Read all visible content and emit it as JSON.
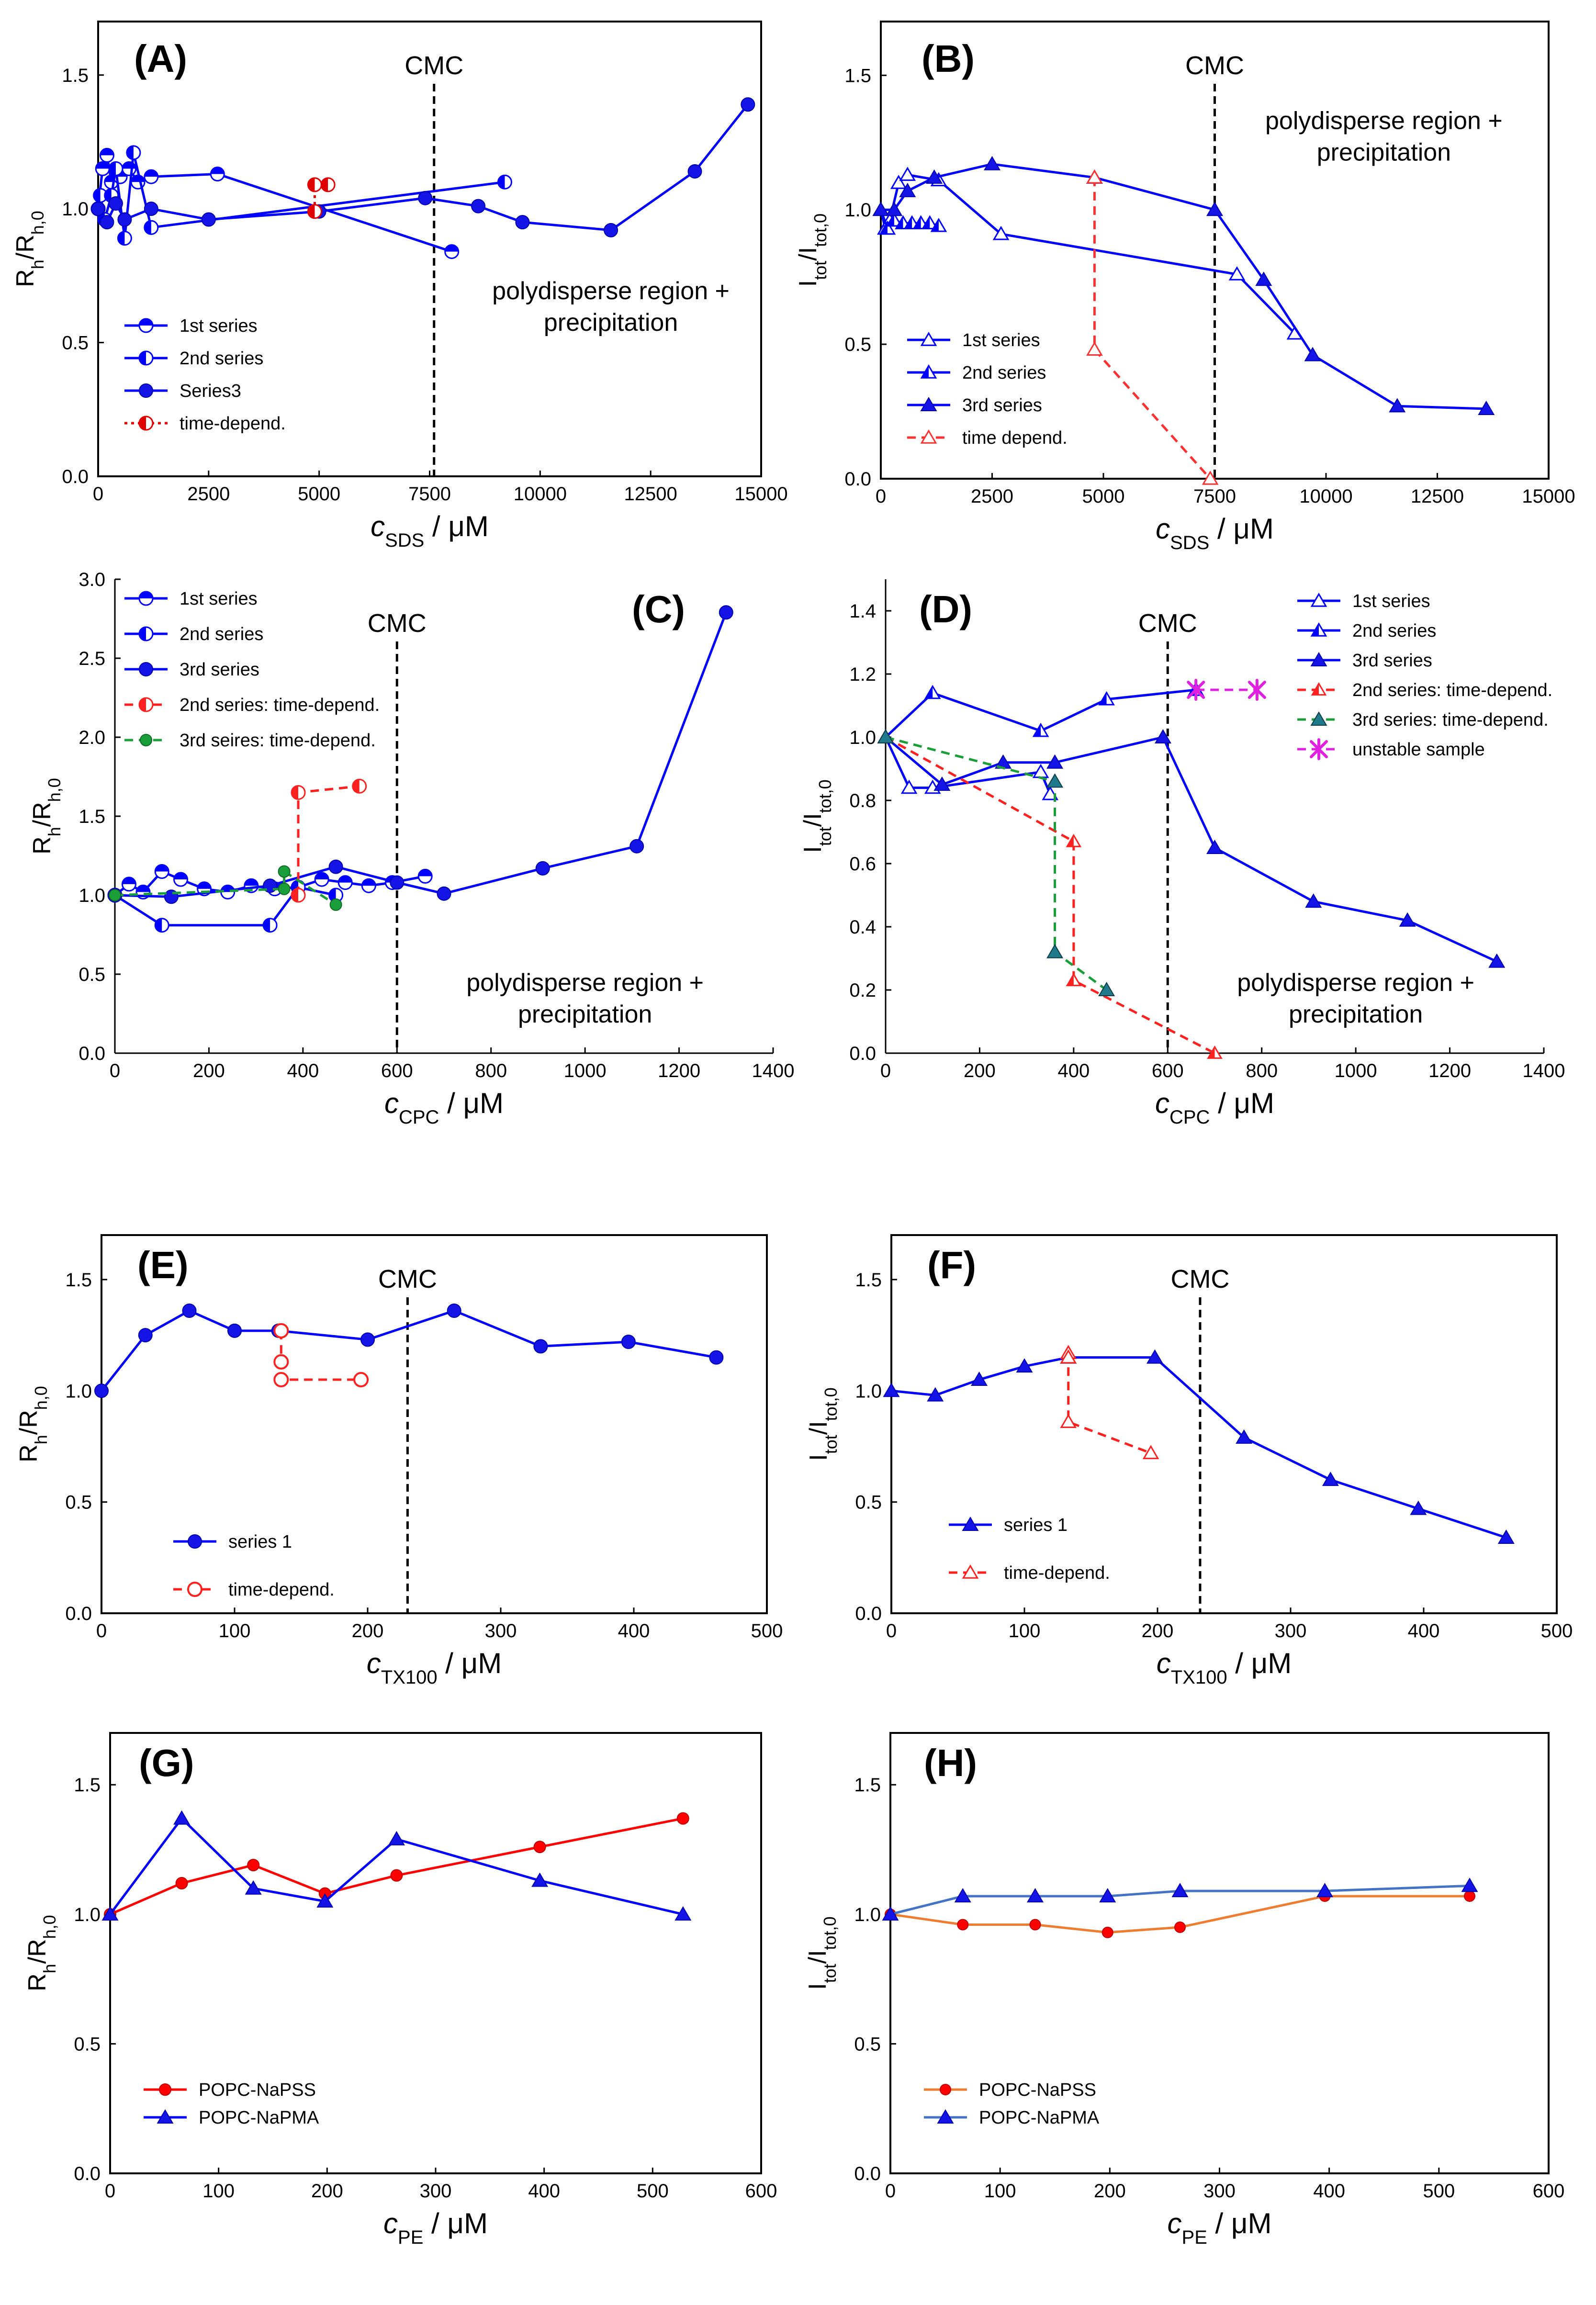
{
  "chart_data": [
    {
      "panel": "A",
      "type": "scatter",
      "xlabel_main": "c",
      "xlabel_sub": "SDS",
      "xlabel_unit": " / μM",
      "ylabel_main": "R",
      "ylabel_sub1": "h",
      "ylabel_mid": "/R",
      "ylabel_sub2": "h,0",
      "xlim": [
        0,
        15000
      ],
      "ylim": [
        0,
        1.7
      ],
      "xticks": [
        0,
        2500,
        5000,
        7500,
        10000,
        12500,
        15000
      ],
      "xtick_labels": [
        "0",
        "2500",
        "5000",
        "7500",
        "10000",
        "12500",
        "15000"
      ],
      "yticks": [
        0,
        0.5,
        1.0,
        1.5
      ],
      "ytick_labels": [
        "0.0",
        "0.5",
        "1.0",
        "1.5"
      ],
      "cmc_x": 7600,
      "cmc_label": "CMC",
      "annotation": [
        "polydisperse region +",
        "precipitation"
      ],
      "annotation_x": 11600,
      "legend_pos": "bottom-left",
      "series": [
        {
          "name": "1st series",
          "color": "#0000ff",
          "marker": "circle-half-top",
          "line": "solid",
          "x": [
            0,
            100,
            200,
            300,
            500,
            700,
            900,
            1200,
            2700,
            8000
          ],
          "y": [
            1.0,
            1.15,
            1.2,
            1.1,
            1.12,
            1.15,
            1.1,
            1.12,
            1.13,
            0.84
          ]
        },
        {
          "name": "2nd series",
          "color": "#0000ff",
          "marker": "circle-half-left",
          "line": "solid",
          "x": [
            0,
            50,
            150,
            300,
            400,
            600,
            800,
            1200,
            9200
          ],
          "y": [
            1.0,
            1.05,
            0.96,
            1.05,
            1.15,
            0.89,
            1.21,
            0.93,
            1.1
          ]
        },
        {
          "name": "Series3",
          "color": "#0000ff",
          "marker": "circle",
          "line": "solid",
          "x": [
            0,
            200,
            400,
            600,
            1200,
            2500,
            5000,
            7400,
            8600,
            9600,
            11600,
            13500,
            14700
          ],
          "y": [
            1.0,
            0.95,
            1.02,
            0.96,
            1.0,
            0.96,
            0.99,
            1.04,
            1.01,
            0.95,
            0.92,
            1.14,
            1.39
          ]
        },
        {
          "name": "time-depend.",
          "color": "#e00000",
          "marker": "circle-half-left",
          "line": "dotted",
          "x": [
            4900,
            4900,
            5200
          ],
          "y": [
            0.99,
            1.09,
            1.09
          ]
        }
      ]
    },
    {
      "panel": "B",
      "type": "scatter",
      "xlabel_main": "c",
      "xlabel_sub": "SDS",
      "xlabel_unit": " / μM",
      "ylabel_main": "I",
      "ylabel_sub1": "tot",
      "ylabel_mid": "/I",
      "ylabel_sub2": "tot,0",
      "xlim": [
        0,
        15000
      ],
      "ylim": [
        0,
        1.7
      ],
      "xticks": [
        0,
        2500,
        5000,
        7500,
        10000,
        12500,
        15000
      ],
      "xtick_labels": [
        "0",
        "2500",
        "5000",
        "7500",
        "10000",
        "12500",
        "15000"
      ],
      "yticks": [
        0,
        0.5,
        1.0,
        1.5
      ],
      "ytick_labels": [
        "0.0",
        "0.5",
        "1.0",
        "1.5"
      ],
      "cmc_x": 7500,
      "cmc_label": "CMC",
      "annotation": [
        "polydisperse region +",
        "precipitation"
      ],
      "annotation_x": 11300,
      "annotation_ytop": 1.3,
      "legend_pos": "bottom-left",
      "series": [
        {
          "name": "1st series",
          "color": "#0000ff",
          "marker": "triangle-open",
          "line": "solid",
          "x": [
            0,
            100,
            200,
            400,
            600,
            1300,
            2700,
            8000,
            9300
          ],
          "y": [
            1.0,
            0.93,
            0.96,
            1.1,
            1.13,
            1.11,
            0.91,
            0.76,
            0.54
          ]
        },
        {
          "name": "2nd series",
          "color": "#0000ff",
          "marker": "triangle-half",
          "line": "solid",
          "x": [
            0,
            150,
            300,
            500,
            700,
            900,
            1100,
            1300
          ],
          "y": [
            1.0,
            0.93,
            0.96,
            0.95,
            0.95,
            0.95,
            0.95,
            0.94
          ]
        },
        {
          "name": "3rd series",
          "color": "#0000ff",
          "marker": "triangle",
          "line": "solid",
          "x": [
            0,
            300,
            600,
            1200,
            2500,
            4800,
            7500,
            8600,
            9700,
            11600,
            13600
          ],
          "y": [
            1.0,
            1.0,
            1.07,
            1.12,
            1.17,
            1.12,
            1.0,
            0.74,
            0.46,
            0.27,
            0.26
          ]
        },
        {
          "name": "time depend.",
          "color": "#ff3030",
          "marker": "triangle-open",
          "line": "dashed",
          "x": [
            4800,
            4800,
            7400
          ],
          "y": [
            1.12,
            0.48,
            0.0
          ]
        }
      ]
    },
    {
      "panel": "C",
      "type": "scatter",
      "xlabel_main": "c",
      "xlabel_sub": "CPC",
      "xlabel_unit": " / μM",
      "ylabel_main": "R",
      "ylabel_sub1": "h",
      "ylabel_mid": "/R",
      "ylabel_sub2": "h,0",
      "xlim": [
        0,
        1400
      ],
      "ylim": [
        0,
        3.0
      ],
      "xticks": [
        0,
        200,
        400,
        600,
        800,
        1000,
        1200,
        1400
      ],
      "xtick_labels": [
        "0",
        "200",
        "400",
        "600",
        "800",
        "1000",
        "1200",
        "1400"
      ],
      "yticks": [
        0,
        0.5,
        1.0,
        1.5,
        2.0,
        2.5,
        3.0
      ],
      "ytick_labels": [
        "0.0",
        "0.5",
        "1.0",
        "1.5",
        "2.0",
        "2.5",
        "3.0"
      ],
      "cmc_x": 600,
      "cmc_label": "CMC",
      "annotation": [
        "polydisperse region +",
        "precipitation"
      ],
      "annotation_x": 1000,
      "legend_pos": "top-left",
      "series": [
        {
          "name": "1st series",
          "color": "#0000ff",
          "marker": "circle-half-top",
          "line": "solid",
          "x": [
            0,
            30,
            60,
            100,
            140,
            190,
            240,
            290,
            340,
            390,
            440,
            490,
            540,
            590,
            660
          ],
          "y": [
            1.0,
            1.07,
            1.02,
            1.15,
            1.1,
            1.04,
            1.02,
            1.06,
            1.04,
            1.05,
            1.1,
            1.08,
            1.06,
            1.08,
            1.12
          ]
        },
        {
          "name": "2nd series",
          "color": "#0000ff",
          "marker": "circle-half-left",
          "line": "solid",
          "x": [
            0,
            100,
            330,
            390,
            470
          ],
          "y": [
            1.0,
            0.81,
            0.81,
            1.05,
            1.0
          ]
        },
        {
          "name": "3rd series",
          "color": "#0000ff",
          "marker": "circle",
          "line": "solid",
          "x": [
            0,
            120,
            330,
            470,
            600,
            700,
            910,
            1110,
            1300
          ],
          "y": [
            1.0,
            0.99,
            1.06,
            1.18,
            1.08,
            1.01,
            1.17,
            1.31,
            2.79
          ]
        },
        {
          "name": "2nd series: time-depend.",
          "color": "#ff2020",
          "marker": "circle-half-left",
          "line": "dashed",
          "x": [
            390,
            390,
            520
          ],
          "y": [
            1.0,
            1.65,
            1.69
          ]
        },
        {
          "name": "3rd seires: time-depend.",
          "color": "#1a9e3a",
          "marker": "circle-green",
          "line": "dashed",
          "x": [
            0,
            360,
            360,
            470
          ],
          "y": [
            1.0,
            1.04,
            1.15,
            0.94
          ]
        }
      ]
    },
    {
      "panel": "D",
      "type": "scatter",
      "xlabel_main": "c",
      "xlabel_sub": "CPC",
      "xlabel_unit": " / μM",
      "ylabel_main": "I",
      "ylabel_sub1": "tot",
      "ylabel_mid": "/I",
      "ylabel_sub2": "tot,0",
      "xlim": [
        0,
        1400
      ],
      "ylim": [
        0,
        1.5
      ],
      "xticks": [
        0,
        200,
        400,
        600,
        800,
        1000,
        1200,
        1400
      ],
      "xtick_labels": [
        "0",
        "200",
        "400",
        "600",
        "800",
        "1000",
        "1200",
        "1400"
      ],
      "yticks": [
        0,
        0.2,
        0.4,
        0.6,
        0.8,
        1.0,
        1.2,
        1.4
      ],
      "ytick_labels": [
        "0.0",
        "0.2",
        "0.4",
        "0.6",
        "0.8",
        "1.0",
        "1.2",
        "1.4"
      ],
      "cmc_x": 600,
      "cmc_label": "CMC",
      "annotation": [
        "polydisperse region +",
        "precipitation"
      ],
      "annotation_x": 1000,
      "legend_pos": "top-right",
      "series": [
        {
          "name": "1st series",
          "color": "#0000ff",
          "marker": "triangle-open",
          "line": "solid",
          "x": [
            0,
            50,
            100,
            330,
            350
          ],
          "y": [
            1.0,
            0.84,
            0.84,
            0.89,
            0.82
          ]
        },
        {
          "name": "2nd series",
          "color": "#0000ff",
          "marker": "triangle-half",
          "line": "solid",
          "x": [
            0,
            100,
            330,
            470,
            660
          ],
          "y": [
            1.0,
            1.14,
            1.02,
            1.12,
            1.15
          ]
        },
        {
          "name": "3rd series",
          "color": "#0000ff",
          "marker": "triangle",
          "line": "solid",
          "x": [
            0,
            120,
            250,
            360,
            590,
            700,
            910,
            1110,
            1300
          ],
          "y": [
            1.0,
            0.85,
            0.92,
            0.92,
            1.0,
            0.65,
            0.48,
            0.42,
            0.29
          ]
        },
        {
          "name": "2nd series: time-depend.",
          "color": "#ff2020",
          "marker": "triangle-half-red",
          "line": "dashed",
          "x": [
            0,
            400,
            400,
            700
          ],
          "y": [
            1.0,
            0.67,
            0.23,
            0.0
          ]
        },
        {
          "name": "3rd series: time-depend.",
          "color": "#1a9e3a",
          "marker": "triangle-teal",
          "line": "dashed",
          "x": [
            0,
            360,
            360,
            470
          ],
          "y": [
            1.0,
            0.86,
            0.32,
            0.2
          ]
        },
        {
          "name": "unstable sample",
          "color": "#e020e0",
          "marker": "star",
          "line": "dashed",
          "x": [
            660,
            790
          ],
          "y": [
            1.15,
            1.15
          ]
        }
      ]
    },
    {
      "panel": "E",
      "type": "scatter",
      "xlabel_main": "c",
      "xlabel_sub": "TX100",
      "xlabel_unit": " / μM",
      "ylabel_main": "R",
      "ylabel_sub1": "h",
      "ylabel_mid": "/R",
      "ylabel_sub2": "h,0",
      "xlim": [
        0,
        500
      ],
      "ylim": [
        0,
        1.7
      ],
      "xticks": [
        0,
        100,
        200,
        300,
        400,
        500
      ],
      "xtick_labels": [
        "0",
        "100",
        "200",
        "300",
        "400",
        "500"
      ],
      "yticks": [
        0,
        0.5,
        1.0,
        1.5
      ],
      "ytick_labels": [
        "0.0",
        "0.5",
        "1.0",
        "1.5"
      ],
      "cmc_x": 230,
      "cmc_label": "CMC",
      "legend_pos": "bottom-left",
      "series": [
        {
          "name": "series 1",
          "color": "#0000ff",
          "marker": "circle",
          "line": "solid",
          "x": [
            0,
            33,
            66,
            100,
            133,
            200,
            265,
            330,
            396,
            462
          ],
          "y": [
            1.0,
            1.25,
            1.36,
            1.27,
            1.27,
            1.23,
            1.36,
            1.2,
            1.22,
            1.15
          ]
        },
        {
          "name": "time-depend.",
          "color": "#ff2020",
          "marker": "circle-open-red",
          "line": "dashed",
          "x": [
            135,
            135,
            135,
            195
          ],
          "y": [
            1.27,
            1.13,
            1.05,
            1.05
          ]
        }
      ]
    },
    {
      "panel": "F",
      "type": "scatter",
      "xlabel_main": "c",
      "xlabel_sub": "TX100",
      "xlabel_unit": " / μM",
      "ylabel_main": "I",
      "ylabel_sub1": "tot",
      "ylabel_mid": "/I",
      "ylabel_sub2": "tot,0",
      "xlim": [
        0,
        500
      ],
      "ylim": [
        0,
        1.7
      ],
      "xticks": [
        0,
        100,
        200,
        300,
        400,
        500
      ],
      "xtick_labels": [
        "0",
        "100",
        "200",
        "300",
        "400",
        "500"
      ],
      "yticks": [
        0,
        0.5,
        1.0,
        1.5
      ],
      "ytick_labels": [
        "0.0",
        "0.5",
        "1.0",
        "1.5"
      ],
      "cmc_x": 232,
      "cmc_label": "CMC",
      "legend_pos": "bottom-left",
      "series": [
        {
          "name": "series 1",
          "color": "#0000ff",
          "marker": "triangle",
          "line": "solid",
          "x": [
            0,
            33,
            66,
            100,
            133,
            198,
            265,
            330,
            396,
            462
          ],
          "y": [
            1.0,
            0.98,
            1.05,
            1.11,
            1.15,
            1.15,
            0.79,
            0.6,
            0.47,
            0.34
          ]
        },
        {
          "name": "time-depend.",
          "color": "#ff2020",
          "marker": "triangle-open-red",
          "line": "dashed",
          "x": [
            133,
            133,
            133,
            195
          ],
          "y": [
            1.17,
            1.15,
            0.86,
            0.72
          ]
        }
      ]
    },
    {
      "panel": "G",
      "type": "line",
      "xlabel_main": "c",
      "xlabel_sub": "PE",
      "xlabel_unit": " / μM",
      "ylabel_main": "R",
      "ylabel_sub1": "h",
      "ylabel_mid": "/R",
      "ylabel_sub2": "h,0",
      "xlim": [
        0,
        600
      ],
      "ylim": [
        0,
        1.7
      ],
      "xticks": [
        0,
        100,
        200,
        300,
        400,
        500,
        600
      ],
      "xtick_labels": [
        "0",
        "100",
        "200",
        "300",
        "400",
        "500",
        "600"
      ],
      "yticks": [
        0,
        0.5,
        1.0,
        1.5
      ],
      "ytick_labels": [
        "0.0",
        "0.5",
        "1.0",
        "1.5"
      ],
      "legend_pos": "bottom-left",
      "series": [
        {
          "name": "POPC-NaPSS",
          "color": "#ff0000",
          "marker": "circle-red",
          "line": "solid",
          "x": [
            0,
            66,
            132,
            198,
            264,
            396,
            528
          ],
          "y": [
            1.0,
            1.12,
            1.19,
            1.08,
            1.15,
            1.26,
            1.37
          ]
        },
        {
          "name": "POPC-NaPMA",
          "color": "#0000ff",
          "marker": "triangle",
          "line": "solid",
          "x": [
            0,
            66,
            132,
            198,
            264,
            396,
            528
          ],
          "y": [
            1.0,
            1.37,
            1.1,
            1.05,
            1.29,
            1.13,
            1.0
          ]
        }
      ]
    },
    {
      "panel": "H",
      "type": "line",
      "xlabel_main": "c",
      "xlabel_sub": "PE",
      "xlabel_unit": " / μM",
      "ylabel_main": "I",
      "ylabel_sub1": "tot",
      "ylabel_mid": "/I",
      "ylabel_sub2": "tot,0",
      "xlim": [
        0,
        600
      ],
      "ylim": [
        0,
        1.7
      ],
      "xticks": [
        0,
        100,
        200,
        300,
        400,
        500,
        600
      ],
      "xtick_labels": [
        "0",
        "100",
        "200",
        "300",
        "400",
        "500",
        "600"
      ],
      "yticks": [
        0,
        0.5,
        1.0,
        1.5
      ],
      "ytick_labels": [
        "0.0",
        "0.5",
        "1.0",
        "1.5"
      ],
      "legend_pos": "bottom-left",
      "series": [
        {
          "name": "POPC-NaPSS",
          "color": "#ed7d31",
          "marker": "circle-red-orange",
          "line": "solid",
          "x": [
            0,
            66,
            132,
            198,
            264,
            396,
            528
          ],
          "y": [
            1.0,
            0.96,
            0.96,
            0.93,
            0.95,
            1.07,
            1.07
          ]
        },
        {
          "name": "POPC-NaPMA",
          "color": "#4472c4",
          "marker": "triangle",
          "line": "solid",
          "x": [
            0,
            66,
            132,
            198,
            264,
            396,
            528
          ],
          "y": [
            1.0,
            1.07,
            1.07,
            1.07,
            1.09,
            1.09,
            1.11
          ]
        }
      ]
    }
  ]
}
